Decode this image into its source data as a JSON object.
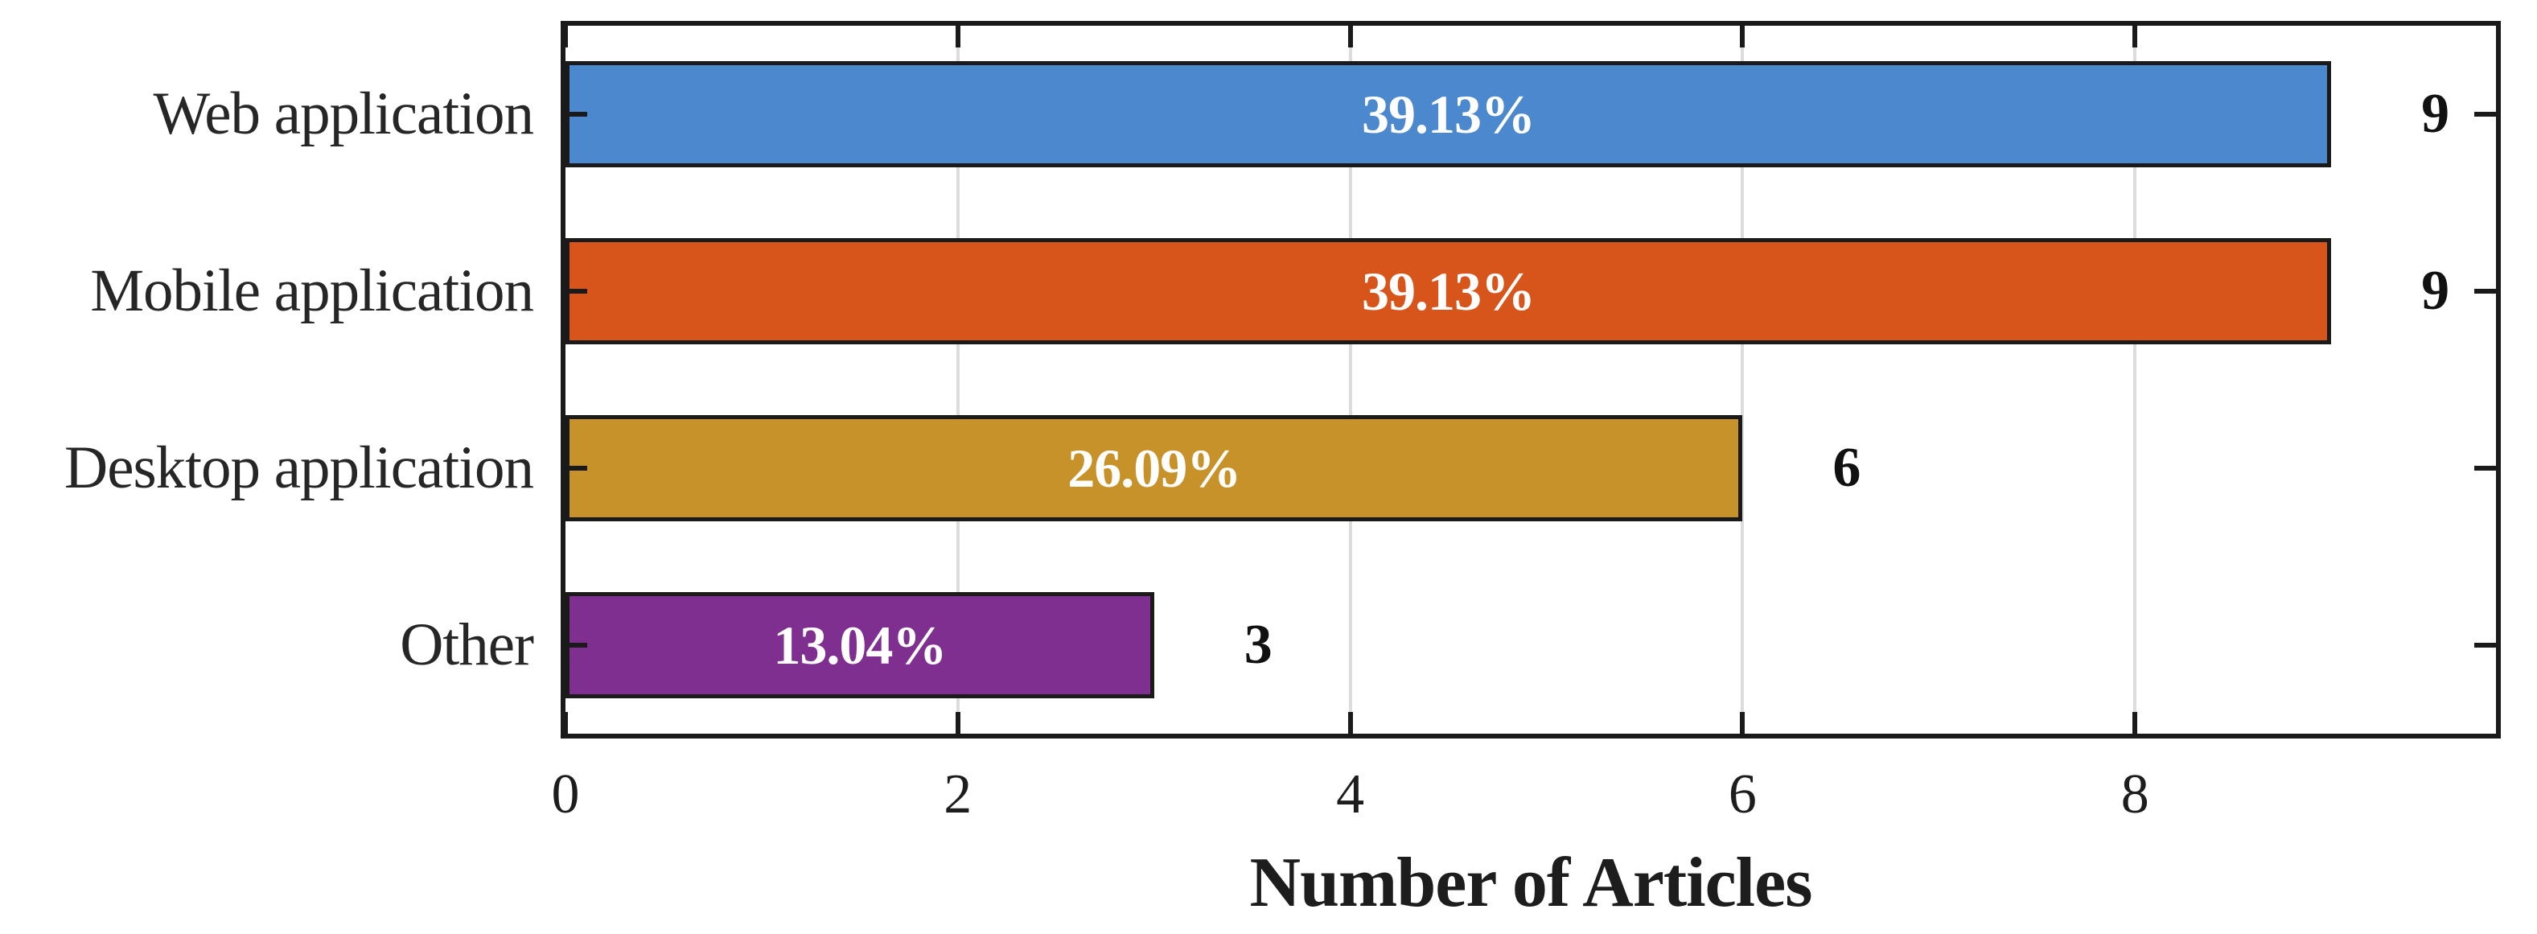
{
  "chart_data": {
    "type": "bar",
    "orientation": "horizontal",
    "title": "",
    "xlabel": "Number of Articles",
    "ylabel": "",
    "categories": [
      "Web application",
      "Mobile application",
      "Desktop application",
      "Other"
    ],
    "series": [
      {
        "name": "Number of Articles",
        "values": [
          9,
          9,
          6,
          3
        ],
        "percent_labels": [
          "39.13%",
          "39.13%",
          "26.09%",
          "13.04%"
        ],
        "count_labels": [
          "9",
          "9",
          "6",
          "3"
        ]
      }
    ],
    "bar_colors": [
      "#4b88cd",
      "#d7541a",
      "#c8922b",
      "#7e2f90"
    ],
    "bar_edge_color": "#1a1a1a",
    "grid": true,
    "grid_color": "#dcdcdc",
    "xticks": [
      0,
      2,
      4,
      6,
      8
    ],
    "xtick_labels": [
      "0",
      "2",
      "4",
      "6",
      "8"
    ],
    "xlim": [
      0,
      9.84
    ],
    "legend": "none",
    "ticks_direction": "in",
    "percent_text_color": "#ffffff",
    "count_text_color": "#111111"
  }
}
